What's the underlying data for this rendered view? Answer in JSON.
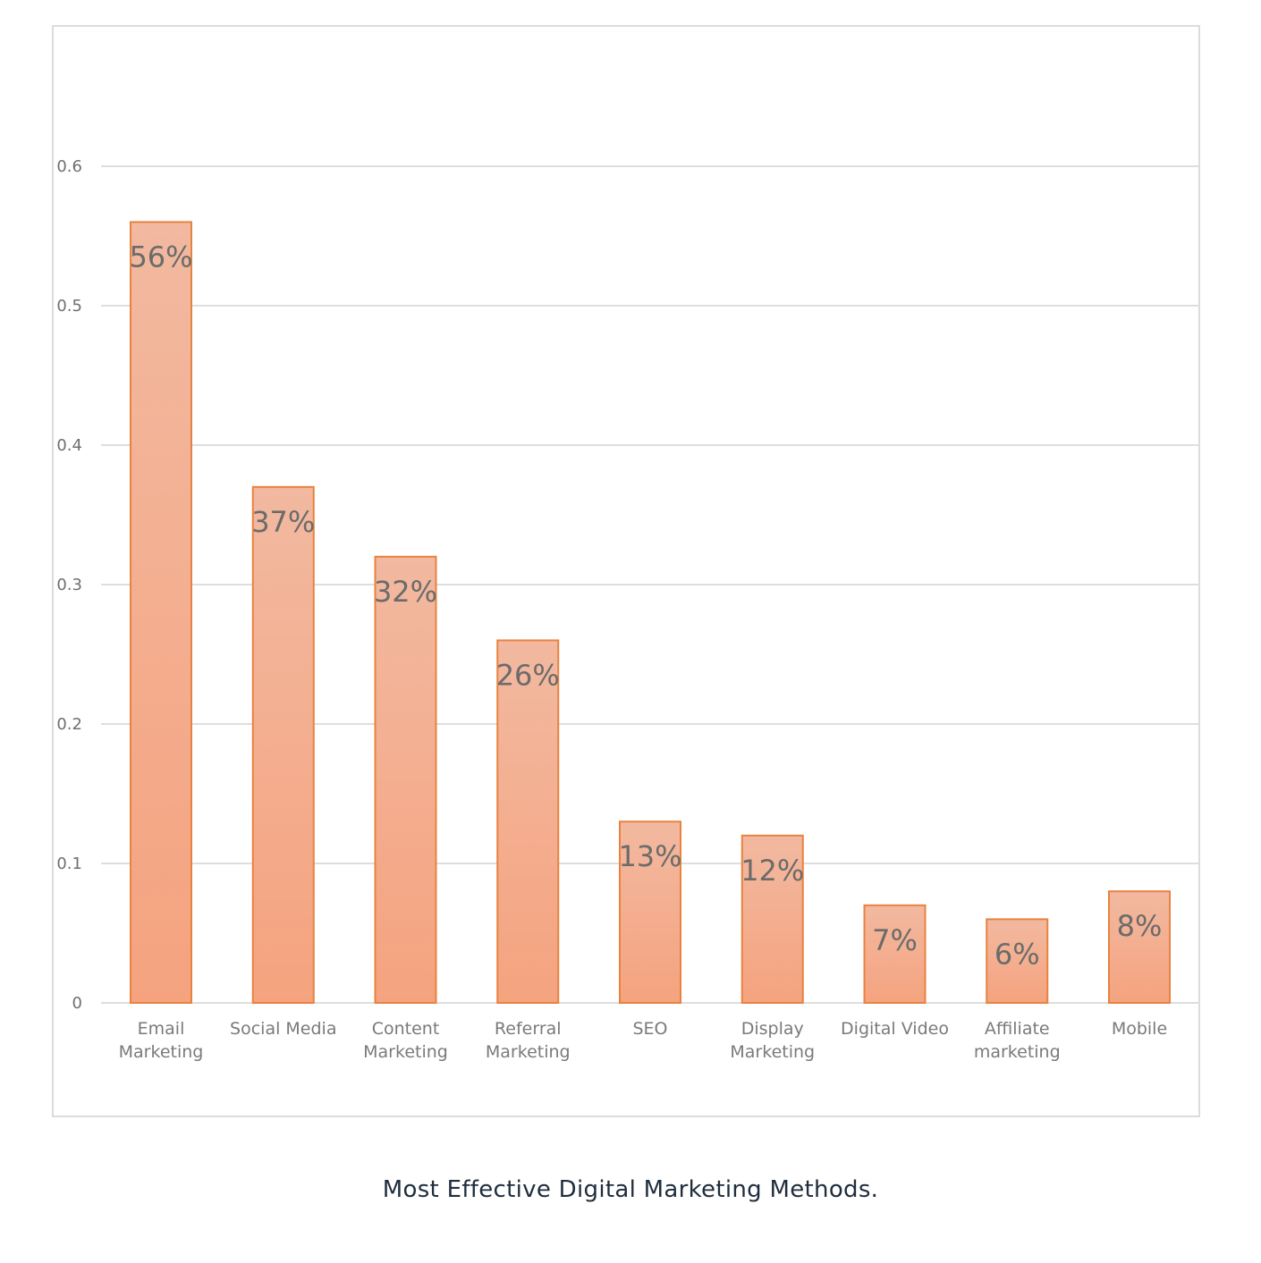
{
  "caption": "Most Effective Digital Marketing Methods.",
  "colors": {
    "bar_fill_top": "#f2b9a0",
    "bar_fill_bottom": "#f5a37f",
    "bar_stroke": "#e8823f",
    "gridline": "#dedede"
  },
  "chart_data": {
    "type": "bar",
    "categories": [
      [
        "Email",
        "Marketing"
      ],
      [
        "Social Media"
      ],
      [
        "Content",
        "Marketing"
      ],
      [
        "Referral",
        "Marketing"
      ],
      [
        "SEO"
      ],
      [
        "Display",
        "Marketing"
      ],
      [
        "Digital Video"
      ],
      [
        "Affiliate",
        "marketing"
      ],
      [
        "Mobile"
      ]
    ],
    "values": [
      0.56,
      0.37,
      0.32,
      0.26,
      0.13,
      0.12,
      0.07,
      0.06,
      0.08
    ],
    "data_labels": [
      "56%",
      "37%",
      "32%",
      "26%",
      "13%",
      "12%",
      "7%",
      "6%",
      "8%"
    ],
    "y_ticks": [
      0,
      0.1,
      0.2,
      0.3,
      0.4,
      0.5,
      0.6
    ],
    "y_tick_labels": [
      "0",
      "0.1",
      "0.2",
      "0.3",
      "0.4",
      "0.5",
      "0.6"
    ],
    "ylim": [
      0,
      0.6
    ],
    "grid": true,
    "legend": "none"
  }
}
